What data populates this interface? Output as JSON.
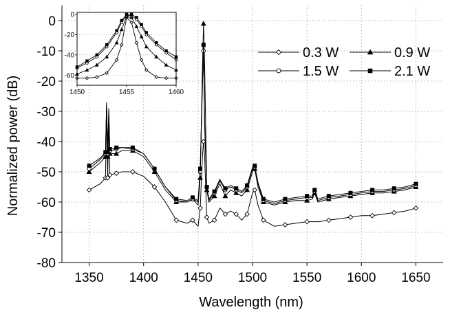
{
  "chart_data": [
    {
      "type": "line",
      "xlabel": "Wavelength (nm)",
      "ylabel": "Normalized power (dB)",
      "xlim": [
        1325,
        1675
      ],
      "ylim": [
        -80,
        5
      ],
      "xticks": [
        1350,
        1400,
        1450,
        1500,
        1550,
        1600,
        1650
      ],
      "yticks": [
        0,
        -10,
        -20,
        -30,
        -40,
        -50,
        -60,
        -70,
        -80
      ],
      "xtick_labels": [
        "1350",
        "1400",
        "1450",
        "1500",
        "1550",
        "1600",
        "1650"
      ],
      "ytick_labels": [
        "0",
        "-10",
        "-20",
        "-30",
        "-40",
        "-50",
        "-60",
        "-70",
        "-80"
      ],
      "grid": true,
      "legend_position": "top-right",
      "series": [
        {
          "name": "0.3 W",
          "marker": "diamond",
          "x": [
            1350,
            1360,
            1365,
            1366,
            1367,
            1368,
            1369,
            1370,
            1375,
            1380,
            1390,
            1400,
            1410,
            1420,
            1430,
            1440,
            1445,
            1450,
            1452,
            1454,
            1455,
            1456,
            1458,
            1460,
            1465,
            1470,
            1475,
            1480,
            1485,
            1490,
            1495,
            1500,
            1502,
            1505,
            1510,
            1520,
            1530,
            1540,
            1550,
            1560,
            1570,
            1580,
            1590,
            1600,
            1610,
            1620,
            1630,
            1640,
            1650
          ],
          "y": [
            -56,
            -54,
            -52,
            -30,
            -52,
            -32,
            -51,
            -51,
            -50.5,
            -50,
            -50,
            -51.5,
            -55,
            -60,
            -66,
            -67,
            -66,
            -68,
            -62,
            -45,
            -40,
            -45,
            -65,
            -67,
            -66,
            -62,
            -64,
            -63,
            -64,
            -66,
            -64,
            -57,
            -56,
            -61,
            -66,
            -68,
            -67.5,
            -67,
            -66.5,
            -66.5,
            -66,
            -65.5,
            -65,
            -64.5,
            -64.5,
            -64,
            -63.5,
            -63,
            -62
          ]
        },
        {
          "name": "0.9 W",
          "marker": "triangle",
          "x": [
            1350,
            1360,
            1365,
            1366,
            1367,
            1368,
            1369,
            1370,
            1375,
            1380,
            1390,
            1400,
            1410,
            1420,
            1430,
            1440,
            1445,
            1450,
            1452,
            1454,
            1455,
            1456,
            1458,
            1460,
            1465,
            1470,
            1475,
            1480,
            1485,
            1490,
            1495,
            1500,
            1502,
            1505,
            1510,
            1520,
            1530,
            1540,
            1550,
            1555,
            1557,
            1560,
            1570,
            1580,
            1590,
            1600,
            1610,
            1620,
            1630,
            1640,
            1650
          ],
          "y": [
            -50,
            -47,
            -45,
            -27,
            -45,
            -29,
            -44,
            -44,
            -44,
            -43,
            -43,
            -45,
            -50,
            -56,
            -60,
            -60,
            -59,
            -61,
            -52,
            -16,
            -1,
            -14,
            -56,
            -60,
            -58,
            -54,
            -58,
            -56,
            -57,
            -58,
            -56,
            -50,
            -49,
            -55,
            -60,
            -61,
            -60,
            -59.5,
            -59.5,
            -59,
            -57,
            -60,
            -59,
            -58.5,
            -58,
            -57.5,
            -57,
            -57,
            -56.5,
            -56,
            -55
          ]
        },
        {
          "name": "1.5 W",
          "marker": "circle",
          "x": [
            1350,
            1360,
            1365,
            1366,
            1367,
            1368,
            1369,
            1370,
            1375,
            1380,
            1390,
            1400,
            1410,
            1420,
            1430,
            1440,
            1445,
            1450,
            1452,
            1454,
            1455,
            1456,
            1458,
            1460,
            1465,
            1470,
            1475,
            1480,
            1485,
            1490,
            1495,
            1500,
            1502,
            1505,
            1510,
            1520,
            1530,
            1540,
            1550,
            1555,
            1557,
            1560,
            1570,
            1580,
            1590,
            1600,
            1610,
            1620,
            1630,
            1640,
            1650
          ],
          "y": [
            -49,
            -46,
            -44,
            -28,
            -44,
            -30,
            -43,
            -43,
            -42.5,
            -42,
            -42.5,
            -44,
            -49,
            -55,
            -59.5,
            -60,
            -59,
            -60,
            -50,
            -22,
            -10,
            -35,
            -55,
            -59.5,
            -57,
            -53,
            -56,
            -55,
            -56,
            -57,
            -55,
            -49,
            -48.5,
            -54,
            -59.5,
            -60.5,
            -59.5,
            -59,
            -58.5,
            -58.5,
            -56.5,
            -59.5,
            -58.5,
            -58,
            -57.5,
            -57,
            -56.5,
            -56.5,
            -56,
            -55.5,
            -54.5
          ]
        },
        {
          "name": "2.1 W",
          "marker": "square",
          "x": [
            1350,
            1360,
            1365,
            1366,
            1367,
            1368,
            1369,
            1370,
            1375,
            1380,
            1390,
            1400,
            1410,
            1420,
            1430,
            1440,
            1445,
            1450,
            1452,
            1454,
            1455,
            1456,
            1458,
            1460,
            1465,
            1470,
            1475,
            1480,
            1485,
            1490,
            1495,
            1500,
            1502,
            1505,
            1510,
            1520,
            1530,
            1540,
            1550,
            1555,
            1557,
            1560,
            1570,
            1580,
            1590,
            1600,
            1610,
            1620,
            1630,
            1640,
            1650
          ],
          "y": [
            -48,
            -45.5,
            -43.5,
            -28,
            -43.5,
            -31,
            -42.5,
            -42.5,
            -42,
            -42,
            -42,
            -44,
            -49,
            -55,
            -59,
            -59.5,
            -58.5,
            -59.5,
            -49,
            -20,
            -8,
            -33,
            -55,
            -59,
            -56.5,
            -52.5,
            -55.5,
            -54.5,
            -55.5,
            -56.5,
            -54.5,
            -48.5,
            -48,
            -53.5,
            -59,
            -60,
            -59,
            -58.5,
            -58,
            -58,
            -56,
            -59,
            -58,
            -57.5,
            -57,
            -56.5,
            -56,
            -56,
            -55.5,
            -55,
            -54
          ]
        }
      ]
    },
    {
      "type": "line",
      "role": "inset",
      "xlim": [
        1450,
        1460
      ],
      "ylim": [
        -70,
        2
      ],
      "xticks": [
        1450,
        1455,
        1460
      ],
      "yticks": [
        0,
        -20,
        -40,
        -60
      ],
      "xtick_labels": [
        "1450",
        "1455",
        "1460"
      ],
      "ytick_labels": [
        "0",
        "-20",
        "-40",
        "-60"
      ],
      "grid": true,
      "series": [
        {
          "name": "0.3 W",
          "marker": "diamond",
          "x": [
            1450,
            1451,
            1452,
            1453,
            1454,
            1454.5,
            1455,
            1455.5,
            1456,
            1456.5,
            1457,
            1458,
            1459,
            1460
          ],
          "y": [
            -63,
            -63,
            -62,
            -58,
            -45,
            -30,
            -3,
            -8,
            -28,
            -45,
            -55,
            -62,
            -63,
            -63
          ]
        },
        {
          "name": "0.9 W",
          "marker": "triangle",
          "x": [
            1450,
            1451,
            1452,
            1453,
            1454,
            1454.5,
            1455,
            1455.5,
            1456,
            1456.5,
            1457,
            1458,
            1459,
            1460
          ],
          "y": [
            -59,
            -55,
            -50,
            -42,
            -28,
            -15,
            -2,
            -3,
            -12,
            -22,
            -32,
            -42,
            -50,
            -55
          ]
        },
        {
          "name": "1.5 W",
          "marker": "circle",
          "x": [
            1450,
            1451,
            1452,
            1453,
            1454,
            1454.5,
            1455,
            1455.5,
            1456,
            1456.5,
            1457,
            1458,
            1459,
            1460
          ],
          "y": [
            -53,
            -48,
            -42,
            -32,
            -18,
            -8,
            -1,
            -1,
            -5,
            -12,
            -20,
            -30,
            -38,
            -45
          ]
        },
        {
          "name": "2.1 W",
          "marker": "square",
          "x": [
            1450,
            1451,
            1452,
            1453,
            1454,
            1454.5,
            1455,
            1455.5,
            1456,
            1456.5,
            1457,
            1458,
            1459,
            1460
          ],
          "y": [
            -52,
            -46,
            -40,
            -30,
            -16,
            -6,
            0,
            0,
            -3,
            -10,
            -18,
            -28,
            -36,
            -42
          ]
        }
      ]
    }
  ]
}
